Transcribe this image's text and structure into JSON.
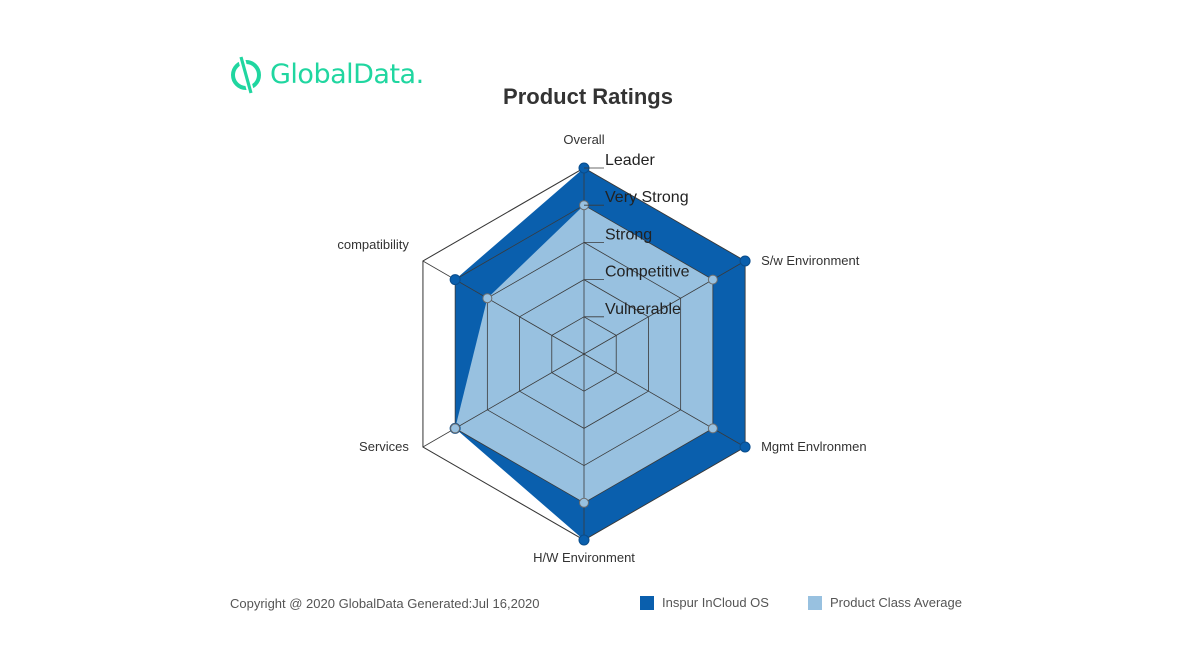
{
  "brand": {
    "logo_text": "GlobalData.",
    "accent_color": "#20d6a0"
  },
  "footer": {
    "copyright": "Copyright @ 2020 GlobalData Generated:Jul 16,2020"
  },
  "chart_data": {
    "type": "radar",
    "title": "Product Ratings",
    "axes": [
      "Overall",
      "S/w Environment",
      "Mgmt Envlronmen",
      "H/W Environment",
      "Services",
      "compatibility"
    ],
    "levels": [
      "Vulnerable",
      "Competitive",
      "Strong",
      "Very Strong",
      "Leader"
    ],
    "max": 5,
    "series": [
      {
        "name": "Inspur InCloud OS",
        "values": [
          5,
          5,
          5,
          5,
          4,
          4
        ],
        "color": "#0a5fad"
      },
      {
        "name": "Product Class Average",
        "values": [
          4,
          4,
          4,
          4,
          4,
          3
        ],
        "color": "#98c1e0"
      }
    ],
    "grid": true,
    "legend_position": "bottom-right"
  }
}
